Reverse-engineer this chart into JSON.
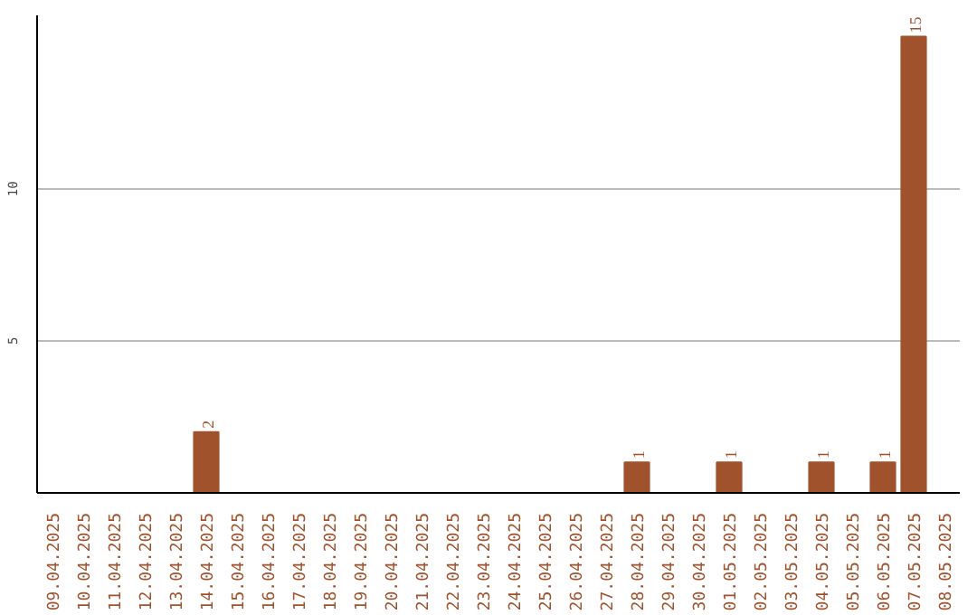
{
  "chart_data": {
    "type": "bar",
    "categories": [
      "09.04.2025",
      "10.04.2025",
      "11.04.2025",
      "12.04.2025",
      "13.04.2025",
      "14.04.2025",
      "15.04.2025",
      "16.04.2025",
      "17.04.2025",
      "18.04.2025",
      "19.04.2025",
      "20.04.2025",
      "21.04.2025",
      "22.04.2025",
      "23.04.2025",
      "24.04.2025",
      "25.04.2025",
      "26.04.2025",
      "27.04.2025",
      "28.04.2025",
      "29.04.2025",
      "30.04.2025",
      "01.05.2025",
      "02.05.2025",
      "03.05.2025",
      "04.05.2025",
      "05.05.2025",
      "06.05.2025",
      "07.05.2025",
      "08.05.2025"
    ],
    "values": [
      0,
      0,
      0,
      0,
      0,
      2,
      0,
      0,
      0,
      0,
      0,
      0,
      0,
      0,
      0,
      0,
      0,
      0,
      0,
      1,
      0,
      0,
      1,
      0,
      0,
      1,
      0,
      1,
      15,
      0
    ],
    "value_labels": [
      null,
      null,
      null,
      null,
      null,
      "2",
      null,
      null,
      null,
      null,
      null,
      null,
      null,
      null,
      null,
      null,
      null,
      null,
      null,
      "1",
      null,
      null,
      "1",
      null,
      null,
      "1",
      null,
      "1",
      "15",
      null
    ],
    "color": "#a0522d",
    "ylim": [
      0,
      15.7
    ],
    "yticks": [
      5,
      10
    ],
    "grid": "y"
  }
}
